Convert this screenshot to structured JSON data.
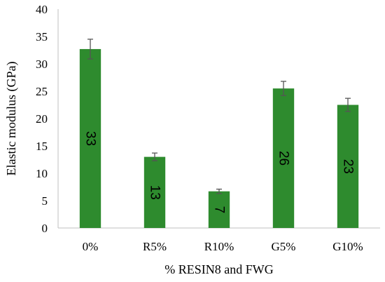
{
  "chart_data": {
    "type": "bar",
    "categories": [
      "0%",
      "R5%",
      "R10%",
      "G5%",
      "G10%"
    ],
    "values": [
      32.7,
      13.0,
      6.7,
      25.5,
      22.5
    ],
    "errors": [
      1.8,
      0.7,
      0.4,
      1.3,
      1.2
    ],
    "data_labels": [
      "33",
      "13",
      "7",
      "26",
      "23"
    ],
    "xlabel": "% RESIN8 and FWG",
    "ylabel": "Elastic modulus (GPa)",
    "ylim": [
      0,
      40
    ],
    "yticks": [
      0,
      5,
      10,
      15,
      20,
      25,
      30,
      35,
      40
    ],
    "grid": false,
    "bar_color": "#2e8b2e",
    "error_bar_color": "#555555"
  }
}
